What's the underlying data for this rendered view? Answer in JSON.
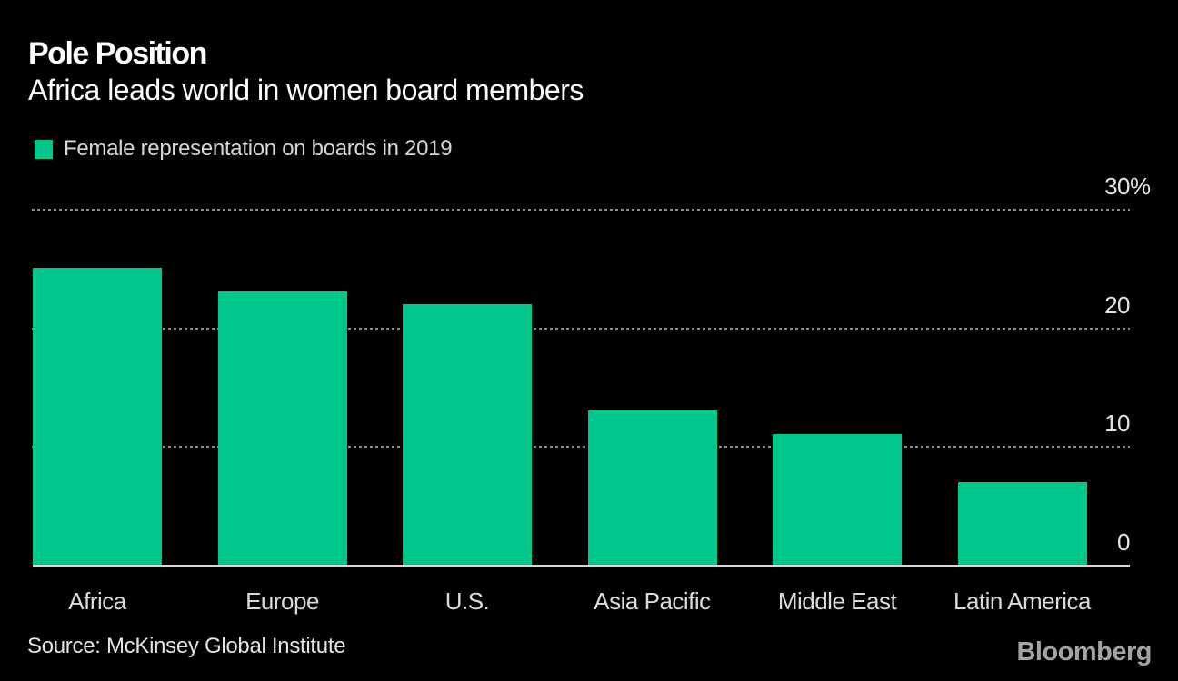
{
  "header": {
    "title": "Pole Position",
    "subtitle": "Africa leads world in women board members"
  },
  "legend": {
    "label": "Female representation on boards in 2019",
    "swatch_color": "#00c88c"
  },
  "chart_data": {
    "type": "bar",
    "title": "Pole Position",
    "subtitle": "Africa leads world in women board members",
    "legend_entry": "Female representation on boards in 2019",
    "categories": [
      "Africa",
      "Europe",
      "U.S.",
      "Asia Pacific",
      "Middle East",
      "Latin America"
    ],
    "values": [
      25,
      23,
      22,
      13,
      11,
      7
    ],
    "unit": "%",
    "ylim": [
      0,
      30
    ],
    "yticks": [
      {
        "value": 30,
        "label": "30",
        "suffix": "%"
      },
      {
        "value": 20,
        "label": "20",
        "suffix": ""
      },
      {
        "value": 10,
        "label": "10",
        "suffix": ""
      },
      {
        "value": 0,
        "label": "0",
        "suffix": ""
      }
    ],
    "grid": "horizontal-dashed",
    "legend_position": "top-left",
    "ytick_side": "right",
    "bar_color": "#00c88c"
  },
  "footer": {
    "source": "Source: McKinsey Global Institute",
    "logo": "Bloomberg"
  },
  "colors": {
    "background": "#000000",
    "bar": "#00c88c",
    "title_text": "#ffffff",
    "label_text": "#dadada",
    "gridline": "#8a8a8a",
    "axis_line": "#d8d8d8",
    "logo_text": "#a3a3a3"
  }
}
